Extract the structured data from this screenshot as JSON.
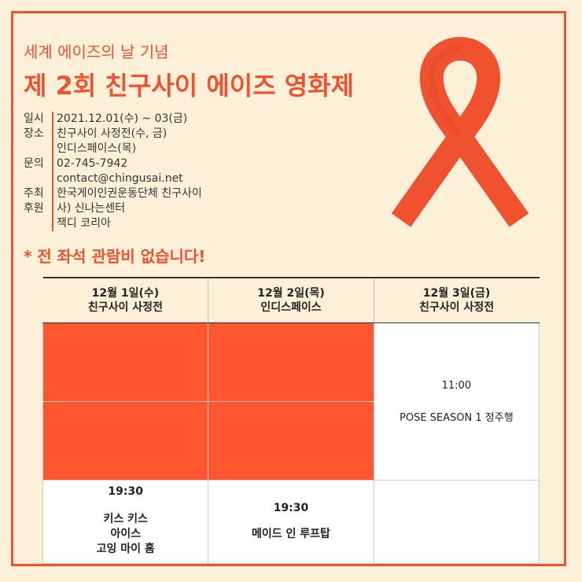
{
  "header": {
    "subtitle": "세계 에이즈의 날 기념",
    "title": "제 2회 친구사이 에이즈 영화제"
  },
  "info": [
    {
      "key": "일시",
      "values": [
        "2021.12.01(수) ~ 03(금)"
      ]
    },
    {
      "key": "장소",
      "values": [
        "친구사이 사정전(수, 금)",
        "인디스페이스(목)"
      ]
    },
    {
      "key": "문의",
      "values": [
        "02-745-7942",
        "contact@chingusai.net"
      ]
    },
    {
      "key": "주최",
      "values": [
        "한국게이인권운동단체 친구사이"
      ]
    },
    {
      "key": "후원",
      "values": [
        "사) 신나는센터",
        "잭디 코리아"
      ]
    }
  ],
  "notice": "* 전 좌석 관람비 없습니다!",
  "schedule": {
    "columns": [
      {
        "date": "12월 1일(수)",
        "venue": "친구사이 사정전"
      },
      {
        "date": "12월 2일(목)",
        "venue": "인디스페이스"
      },
      {
        "date": "12월 3일(금)",
        "venue": "친구사이 사정전"
      }
    ],
    "day1": {
      "time": "19:30",
      "films": [
        "키스 키스",
        "아이스",
        "고잉 마이 홈"
      ]
    },
    "day2": {
      "time": "19:30",
      "films": [
        "메이드 인 루프탑"
      ]
    },
    "day3": {
      "time": "11:00",
      "films": [
        "POSE SEASON 1 정주행"
      ]
    }
  },
  "colors": {
    "accent": "#f05230",
    "block": "#ff5630",
    "background": "#fdf0d9"
  }
}
